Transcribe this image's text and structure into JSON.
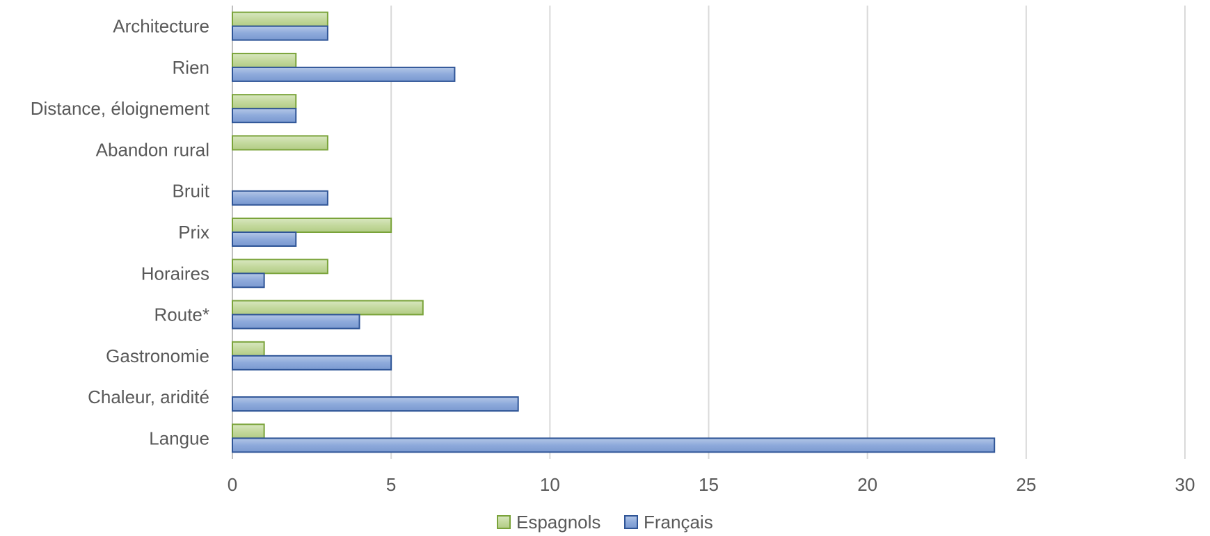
{
  "chart_data": {
    "type": "bar",
    "orientation": "horizontal",
    "title": "",
    "xlabel": "",
    "ylabel": "",
    "categories": [
      "Architecture",
      "Rien",
      "Distance, éloignement",
      "Abandon rural",
      "Bruit",
      "Prix",
      "Horaires",
      "Route*",
      "Gastronomie",
      "Chaleur, aridité",
      "Langue"
    ],
    "series": [
      {
        "name": "Espagnols",
        "color": "#c4d99e",
        "border": "#7aa33a",
        "values": [
          3,
          2,
          2,
          3,
          0,
          5,
          3,
          6,
          1,
          0,
          1
        ]
      },
      {
        "name": "Français",
        "color": "#8eaadb",
        "border": "#2f5597",
        "values": [
          3,
          7,
          2,
          0,
          3,
          2,
          1,
          4,
          5,
          9,
          24
        ]
      }
    ],
    "xlim": [
      0,
      30
    ],
    "x_ticks": [
      0,
      5,
      10,
      15,
      20,
      25,
      30
    ],
    "grid": true,
    "legend_position": "bottom"
  }
}
